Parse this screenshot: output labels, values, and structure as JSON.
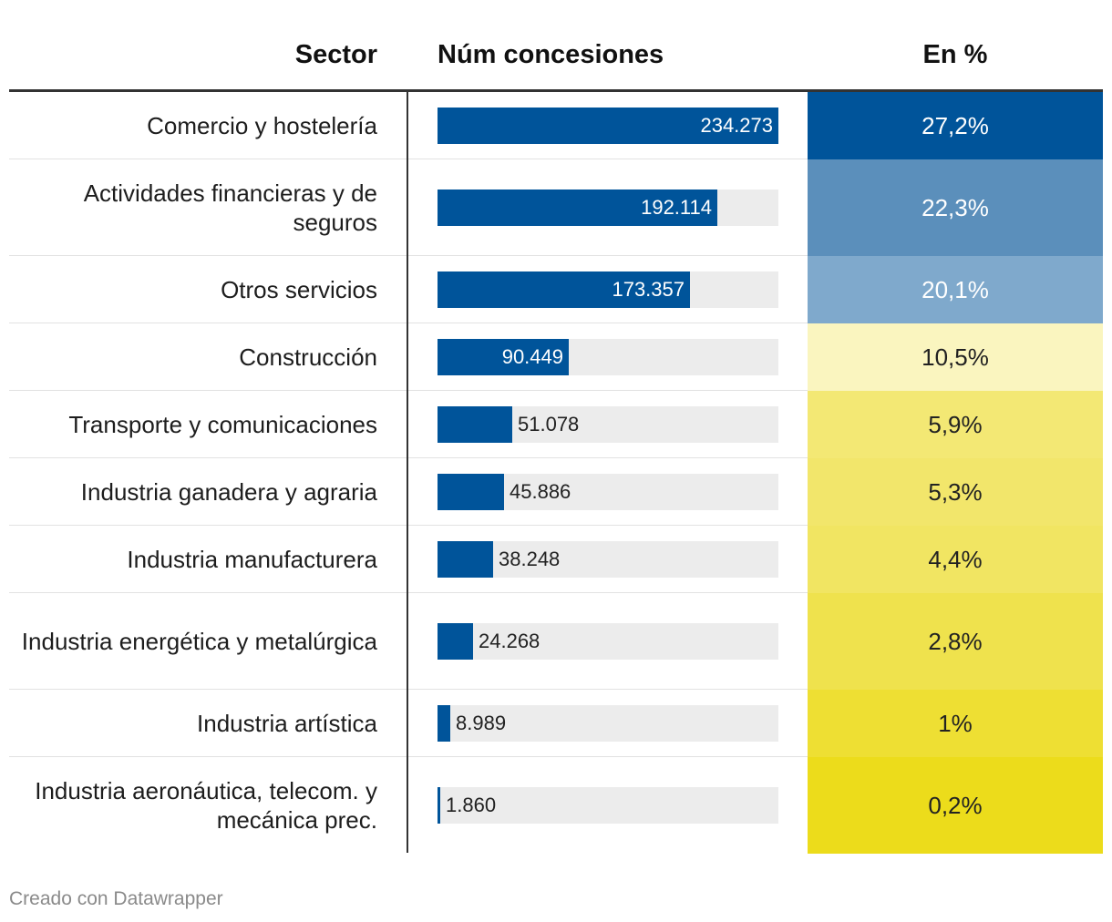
{
  "header": {
    "sector": "Sector",
    "num": "Núm concesiones",
    "pct": "En %"
  },
  "footer": {
    "credit": "Creado con Datawrapper"
  },
  "chart_data": {
    "type": "table",
    "columns": [
      "Sector",
      "Núm concesiones",
      "En %"
    ],
    "max_value": 234273,
    "rows": [
      {
        "sector": "Comercio y hostelería",
        "value": 234273,
        "value_label": "234.273",
        "pct": 27.2,
        "pct_label": "27,2%",
        "bg": "#00549a",
        "fg": "#ffffff"
      },
      {
        "sector": "Actividades financieras y de seguros",
        "value": 192114,
        "value_label": "192.114",
        "pct": 22.3,
        "pct_label": "22,3%",
        "bg": "#5b8fbb",
        "fg": "#ffffff"
      },
      {
        "sector": "Otros servicios",
        "value": 173357,
        "value_label": "173.357",
        "pct": 20.1,
        "pct_label": "20,1%",
        "bg": "#7fa9cc",
        "fg": "#ffffff"
      },
      {
        "sector": "Construcción",
        "value": 90449,
        "value_label": "90.449",
        "pct": 10.5,
        "pct_label": "10,5%",
        "bg": "#faf5bf",
        "fg": "#222222"
      },
      {
        "sector": "Transporte y comunicaciones",
        "value": 51078,
        "value_label": "51.078",
        "pct": 5.9,
        "pct_label": "5,9%",
        "bg": "#f3e874",
        "fg": "#222222"
      },
      {
        "sector": "Industria ganadera y agraria",
        "value": 45886,
        "value_label": "45.886",
        "pct": 5.3,
        "pct_label": "5,3%",
        "bg": "#f2e66b",
        "fg": "#222222"
      },
      {
        "sector": "Industria manufacturera",
        "value": 38248,
        "value_label": "38.248",
        "pct": 4.4,
        "pct_label": "4,4%",
        "bg": "#f1e562",
        "fg": "#222222"
      },
      {
        "sector": "Industria energética y metalúrgica",
        "value": 24268,
        "value_label": "24.268",
        "pct": 2.8,
        "pct_label": "2,8%",
        "bg": "#efe24d",
        "fg": "#222222"
      },
      {
        "sector": "Industria artística",
        "value": 8989,
        "value_label": "8.989",
        "pct": 1,
        "pct_label": "1%",
        "bg": "#eedf33",
        "fg": "#222222"
      },
      {
        "sector": "Industria aeronáutica, telecom. y mecánica prec.",
        "value": 1860,
        "value_label": "1.860",
        "pct": 0.2,
        "pct_label": "0,2%",
        "bg": "#ecdc1b",
        "fg": "#222222"
      }
    ]
  }
}
